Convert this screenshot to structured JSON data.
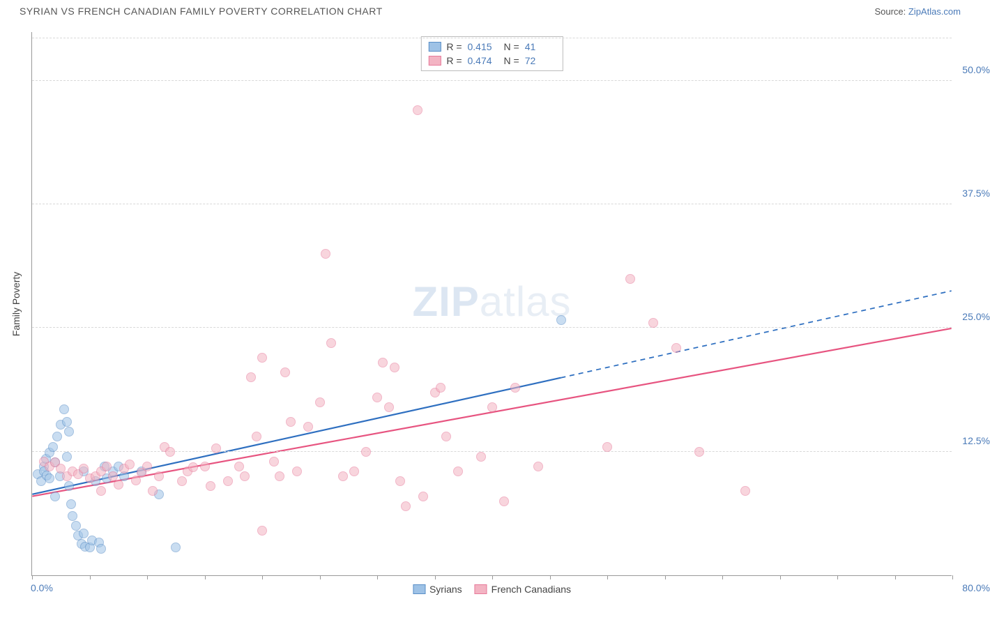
{
  "header": {
    "title": "SYRIAN VS FRENCH CANADIAN FAMILY POVERTY CORRELATION CHART",
    "source_prefix": "Source: ",
    "source_link": "ZipAtlas.com"
  },
  "chart": {
    "type": "scatter",
    "ylabel": "Family Poverty",
    "watermark_a": "ZIP",
    "watermark_b": "atlas",
    "xlim": [
      0,
      80
    ],
    "ylim": [
      0,
      55
    ],
    "x_origin_label": "0.0%",
    "x_max_label": "80.0%",
    "y_ticks": [
      {
        "v": 12.5,
        "label": "12.5%"
      },
      {
        "v": 25.0,
        "label": "25.0%"
      },
      {
        "v": 37.5,
        "label": "37.5%"
      },
      {
        "v": 50.0,
        "label": "50.0%"
      }
    ],
    "x_tick_marks": [
      0,
      5,
      10,
      15,
      20,
      25,
      30,
      35,
      40,
      45,
      50,
      55,
      60,
      65,
      70,
      75,
      80
    ],
    "grid_color": "#d8d8d8",
    "background_color": "#ffffff",
    "series": [
      {
        "name": "Syrians",
        "fill": "#9ec2e6",
        "fill_opacity": 0.55,
        "stroke": "#5a8fc7",
        "marker_radius": 7,
        "line_color": "#2e6fc0",
        "line_width": 2.2,
        "R": "0.415",
        "N": "41",
        "regression": {
          "x1": 0,
          "y1": 8.2,
          "x2_solid": 46,
          "y2_solid": 20.0,
          "x2_dash": 80,
          "y2_dash": 28.8
        },
        "points": [
          [
            0.5,
            10.2
          ],
          [
            0.8,
            9.5
          ],
          [
            1.0,
            11.0
          ],
          [
            1.0,
            10.5
          ],
          [
            1.2,
            11.8
          ],
          [
            1.3,
            10.1
          ],
          [
            1.5,
            12.4
          ],
          [
            1.5,
            9.8
          ],
          [
            1.8,
            13.0
          ],
          [
            2.0,
            11.4
          ],
          [
            2.0,
            8.0
          ],
          [
            2.2,
            14.0
          ],
          [
            2.4,
            10.0
          ],
          [
            2.5,
            15.2
          ],
          [
            2.8,
            16.8
          ],
          [
            3.0,
            12.0
          ],
          [
            3.2,
            9.0
          ],
          [
            3.4,
            7.2
          ],
          [
            3.5,
            6.0
          ],
          [
            3.8,
            5.0
          ],
          [
            4.0,
            4.0
          ],
          [
            4.3,
            3.2
          ],
          [
            4.5,
            4.2
          ],
          [
            4.6,
            2.9
          ],
          [
            5.0,
            2.8
          ],
          [
            5.2,
            3.5
          ],
          [
            5.8,
            3.3
          ],
          [
            6.0,
            2.7
          ],
          [
            6.3,
            11.0
          ],
          [
            6.5,
            9.8
          ],
          [
            7.0,
            10.5
          ],
          [
            7.5,
            11.0
          ],
          [
            3.0,
            15.5
          ],
          [
            3.2,
            14.5
          ],
          [
            4.5,
            10.5
          ],
          [
            5.5,
            9.5
          ],
          [
            8.0,
            10.0
          ],
          [
            9.5,
            10.5
          ],
          [
            11.0,
            8.2
          ],
          [
            12.5,
            2.8
          ],
          [
            46.0,
            25.8
          ]
        ]
      },
      {
        "name": "French Canadians",
        "fill": "#f3b4c3",
        "fill_opacity": 0.55,
        "stroke": "#e77a9a",
        "marker_radius": 7,
        "line_color": "#e75480",
        "line_width": 2.2,
        "R": "0.474",
        "N": "72",
        "regression": {
          "x1": 0,
          "y1": 8.0,
          "x2_solid": 80,
          "y2_solid": 25.0,
          "x2_dash": 80,
          "y2_dash": 25.0
        },
        "points": [
          [
            1.0,
            11.5
          ],
          [
            1.5,
            11.0
          ],
          [
            2.0,
            11.4
          ],
          [
            2.5,
            10.8
          ],
          [
            3.0,
            10.0
          ],
          [
            3.5,
            10.5
          ],
          [
            4.0,
            10.2
          ],
          [
            4.5,
            10.8
          ],
          [
            5.0,
            9.8
          ],
          [
            5.5,
            10.0
          ],
          [
            6.0,
            10.5
          ],
          [
            6.5,
            11.0
          ],
          [
            7.0,
            10.0
          ],
          [
            7.5,
            9.2
          ],
          [
            8.0,
            10.8
          ],
          [
            8.5,
            11.2
          ],
          [
            9.0,
            9.6
          ],
          [
            9.5,
            10.4
          ],
          [
            10.0,
            11.0
          ],
          [
            10.5,
            8.5
          ],
          [
            11.0,
            10.0
          ],
          [
            11.5,
            13.0
          ],
          [
            12.0,
            12.5
          ],
          [
            13.0,
            9.5
          ],
          [
            13.5,
            10.5
          ],
          [
            14.0,
            10.9
          ],
          [
            15.0,
            11.0
          ],
          [
            15.5,
            9.0
          ],
          [
            16.0,
            12.8
          ],
          [
            17.0,
            9.5
          ],
          [
            18.0,
            11.0
          ],
          [
            18.5,
            10.0
          ],
          [
            19.0,
            20.0
          ],
          [
            19.5,
            14.0
          ],
          [
            20.0,
            22.0
          ],
          [
            21.0,
            11.5
          ],
          [
            21.5,
            10.0
          ],
          [
            22.0,
            20.5
          ],
          [
            22.5,
            15.5
          ],
          [
            23.0,
            10.5
          ],
          [
            24.0,
            15.0
          ],
          [
            25.0,
            17.5
          ],
          [
            25.5,
            32.5
          ],
          [
            26.0,
            23.5
          ],
          [
            27.0,
            10.0
          ],
          [
            28.0,
            10.5
          ],
          [
            29.0,
            12.5
          ],
          [
            30.0,
            18.0
          ],
          [
            30.5,
            21.5
          ],
          [
            31.0,
            17.0
          ],
          [
            31.5,
            21.0
          ],
          [
            32.0,
            9.5
          ],
          [
            32.5,
            7.0
          ],
          [
            33.5,
            47.0
          ],
          [
            34.0,
            8.0
          ],
          [
            35.0,
            18.5
          ],
          [
            35.5,
            19.0
          ],
          [
            36.0,
            14.0
          ],
          [
            37.0,
            10.5
          ],
          [
            39.0,
            12.0
          ],
          [
            40.0,
            17.0
          ],
          [
            41.0,
            7.5
          ],
          [
            42.0,
            19.0
          ],
          [
            44.0,
            11.0
          ],
          [
            50.0,
            13.0
          ],
          [
            52.0,
            30.0
          ],
          [
            54.0,
            25.5
          ],
          [
            56.0,
            23.0
          ],
          [
            58.0,
            12.5
          ],
          [
            62.0,
            8.5
          ],
          [
            20.0,
            4.5
          ],
          [
            6.0,
            8.5
          ]
        ]
      }
    ]
  }
}
